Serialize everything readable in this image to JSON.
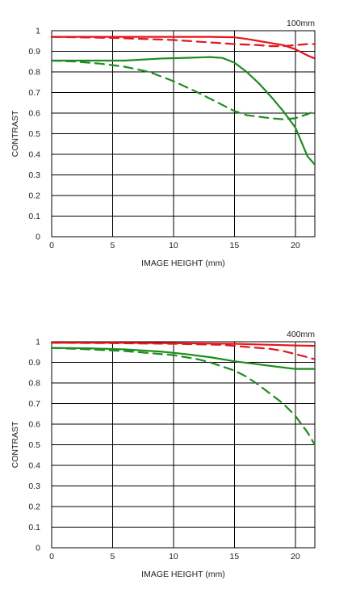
{
  "chart_data": [
    {
      "type": "line",
      "title": "100mm",
      "xlabel": "IMAGE HEIGHT (mm)",
      "ylabel": "CONTRAST",
      "xlim": [
        0,
        21.6
      ],
      "ylim": [
        0,
        1
      ],
      "x_ticks": [
        0,
        5,
        10,
        15,
        20
      ],
      "y_ticks": [
        0,
        0.1,
        0.2,
        0.3,
        0.4,
        0.5,
        0.6,
        0.7,
        0.8,
        0.9,
        1
      ],
      "y_tick_labels": [
        "0",
        "0.1",
        "0.2",
        "0.3",
        "0.4",
        "0.5",
        "0.6",
        "0.7",
        "0.8",
        "0.9",
        "1"
      ],
      "grid": true,
      "series": [
        {
          "color": "#e8141b",
          "style": "solid",
          "x": [
            0,
            5,
            10,
            13,
            15,
            16,
            17,
            18,
            19,
            20,
            21,
            21.6
          ],
          "y": [
            0.97,
            0.97,
            0.97,
            0.97,
            0.968,
            0.96,
            0.95,
            0.94,
            0.93,
            0.91,
            0.88,
            0.865
          ]
        },
        {
          "color": "#e8141b",
          "style": "dashed",
          "x": [
            0,
            5,
            10,
            15,
            17,
            18,
            19,
            20,
            21,
            21.6
          ],
          "y": [
            0.97,
            0.965,
            0.955,
            0.935,
            0.93,
            0.925,
            0.925,
            0.93,
            0.935,
            0.935
          ]
        },
        {
          "color": "#1e8c1e",
          "style": "solid",
          "x": [
            0,
            3,
            6,
            9,
            11,
            13,
            14,
            15,
            16,
            17,
            18,
            19,
            20,
            20.5,
            21,
            21.6
          ],
          "y": [
            0.855,
            0.855,
            0.855,
            0.865,
            0.868,
            0.872,
            0.868,
            0.845,
            0.8,
            0.745,
            0.68,
            0.61,
            0.53,
            0.46,
            0.39,
            0.35
          ]
        },
        {
          "color": "#1e8c1e",
          "style": "dashed",
          "x": [
            0,
            2,
            4,
            6,
            8,
            10,
            12,
            14,
            15,
            16,
            18,
            19,
            20,
            21,
            21.6
          ],
          "y": [
            0.855,
            0.85,
            0.84,
            0.825,
            0.8,
            0.755,
            0.7,
            0.64,
            0.61,
            0.59,
            0.575,
            0.57,
            0.575,
            0.595,
            0.61
          ]
        }
      ]
    },
    {
      "type": "line",
      "title": "400mm",
      "xlabel": "IMAGE HEIGHT (mm)",
      "ylabel": "CONTRAST",
      "xlim": [
        0,
        21.6
      ],
      "ylim": [
        0,
        1
      ],
      "x_ticks": [
        0,
        5,
        10,
        15,
        20
      ],
      "y_ticks": [
        0,
        0.1,
        0.2,
        0.3,
        0.4,
        0.5,
        0.6,
        0.7,
        0.8,
        0.9,
        1
      ],
      "y_tick_labels": [
        "0",
        "0.1",
        "0.2",
        "0.3",
        "0.4",
        "0.5",
        "0.6",
        "0.7",
        "0.8",
        "0.9",
        "1"
      ],
      "grid": true,
      "series": [
        {
          "color": "#e8141b",
          "style": "solid",
          "x": [
            0,
            5,
            10,
            15,
            18,
            20,
            21.6
          ],
          "y": [
            0.995,
            0.995,
            0.993,
            0.99,
            0.985,
            0.982,
            0.98
          ]
        },
        {
          "color": "#e8141b",
          "style": "dashed",
          "x": [
            0,
            5,
            10,
            14,
            16,
            18,
            19,
            20,
            21,
            21.6
          ],
          "y": [
            0.995,
            0.993,
            0.99,
            0.985,
            0.975,
            0.965,
            0.955,
            0.94,
            0.925,
            0.915
          ]
        },
        {
          "color": "#1e8c1e",
          "style": "solid",
          "x": [
            0,
            3,
            6,
            9,
            11,
            13,
            15,
            17,
            19,
            20,
            21,
            21.6
          ],
          "y": [
            0.97,
            0.968,
            0.963,
            0.952,
            0.94,
            0.925,
            0.905,
            0.89,
            0.875,
            0.868,
            0.868,
            0.868
          ]
        },
        {
          "color": "#1e8c1e",
          "style": "dashed",
          "x": [
            0,
            3,
            6,
            8,
            10,
            12,
            13,
            14,
            15,
            16,
            17,
            18,
            19,
            20,
            21,
            21.6
          ],
          "y": [
            0.97,
            0.963,
            0.955,
            0.945,
            0.935,
            0.915,
            0.9,
            0.88,
            0.86,
            0.83,
            0.79,
            0.745,
            0.7,
            0.64,
            0.56,
            0.5
          ]
        }
      ]
    }
  ]
}
